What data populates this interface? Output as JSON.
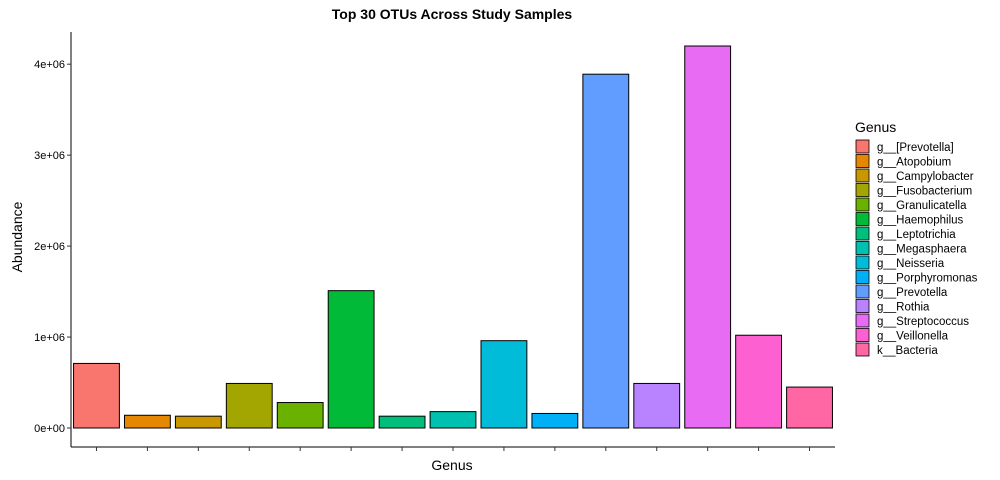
{
  "chart_data": {
    "type": "bar",
    "title": "Top 30 OTUs Across Study Samples",
    "xlabel": "Genus",
    "ylabel": "Abundance",
    "ylim": [
      0,
      4200000
    ],
    "y_ticks": [
      0,
      1000000,
      2000000,
      3000000,
      4000000
    ],
    "y_tick_labels": [
      "0e+00",
      "1e+06",
      "2e+06",
      "3e+06",
      "4e+06"
    ],
    "grid": false,
    "legend": {
      "title": "Genus",
      "placement": "right"
    },
    "categories": [
      "g__[Prevotella]",
      "g__Atopobium",
      "g__Campylobacter",
      "g__Fusobacterium",
      "g__Granulicatella",
      "g__Haemophilus",
      "g__Leptotrichia",
      "g__Megasphaera",
      "g__Neisseria",
      "g__Porphyromonas",
      "g__Prevotella",
      "g__Rothia",
      "g__Streptococcus",
      "g__Veillonella",
      "k__Bacteria"
    ],
    "values": [
      710000,
      140000,
      130000,
      490000,
      280000,
      1510000,
      130000,
      180000,
      960000,
      160000,
      3890000,
      490000,
      4200000,
      1020000,
      450000
    ],
    "colors": [
      "#F8766D",
      "#E58700",
      "#C99800",
      "#A3A500",
      "#6BB100",
      "#00BA38",
      "#00BF7D",
      "#00C0AF",
      "#00BCD8",
      "#00B0F6",
      "#619CFF",
      "#B983FF",
      "#E76BF3",
      "#FD61D1",
      "#FF67A4"
    ]
  }
}
